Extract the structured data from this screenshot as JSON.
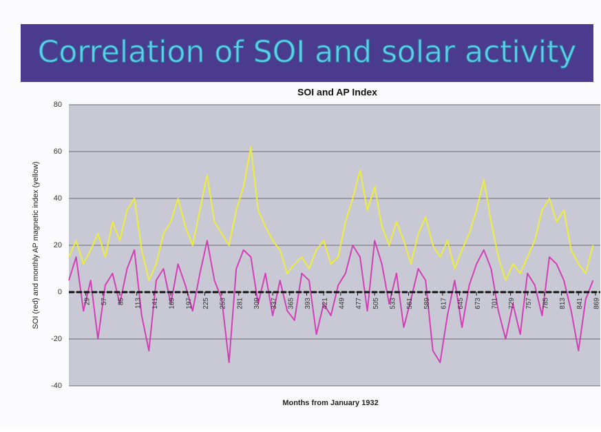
{
  "banner": "Correlation of SOI and solar activity",
  "chart_data": {
    "type": "line",
    "title": "SOI and AP Index",
    "y_label": "SOI (red) and monthly AP magnetic index (yellow)",
    "x_label": "Months from January 1932",
    "xlim": [
      1,
      877
    ],
    "ylim": [
      -40,
      80
    ],
    "yticks": [
      -40,
      -20,
      0,
      20,
      40,
      60,
      80
    ],
    "xticks": [
      29,
      57,
      85,
      113,
      141,
      169,
      197,
      225,
      253,
      281,
      309,
      337,
      365,
      393,
      421,
      449,
      477,
      505,
      533,
      561,
      589,
      617,
      645,
      673,
      701,
      729,
      757,
      785,
      813,
      841,
      869
    ],
    "grid": true,
    "x": [
      1,
      13,
      25,
      37,
      49,
      61,
      73,
      85,
      97,
      109,
      121,
      133,
      145,
      157,
      169,
      181,
      193,
      205,
      217,
      229,
      241,
      253,
      265,
      277,
      289,
      301,
      313,
      325,
      337,
      349,
      361,
      373,
      385,
      397,
      409,
      421,
      433,
      445,
      457,
      469,
      481,
      493,
      505,
      517,
      529,
      541,
      553,
      565,
      577,
      589,
      601,
      613,
      625,
      637,
      649,
      661,
      673,
      685,
      697,
      709,
      721,
      733,
      745,
      757,
      769,
      781,
      793,
      805,
      817,
      829,
      841,
      853,
      865
    ],
    "series": [
      {
        "name": "AP",
        "color": "#eeee3a",
        "values": [
          15,
          22,
          12,
          18,
          25,
          15,
          30,
          22,
          35,
          40,
          18,
          5,
          12,
          25,
          30,
          40,
          28,
          20,
          35,
          50,
          30,
          25,
          20,
          35,
          45,
          62,
          35,
          28,
          22,
          18,
          8,
          12,
          15,
          10,
          18,
          22,
          12,
          15,
          30,
          40,
          52,
          35,
          45,
          28,
          20,
          30,
          22,
          12,
          25,
          32,
          20,
          15,
          22,
          10,
          18,
          25,
          35,
          48,
          30,
          15,
          5,
          12,
          8,
          15,
          22,
          35,
          40,
          30,
          35,
          18,
          12,
          8,
          20
        ]
      },
      {
        "name": "SOI",
        "color": "#d23fb4",
        "values": [
          5,
          15,
          -8,
          5,
          -20,
          3,
          8,
          -5,
          10,
          18,
          -10,
          -25,
          5,
          10,
          -5,
          12,
          3,
          -8,
          8,
          22,
          5,
          -3,
          -30,
          10,
          18,
          15,
          -5,
          8,
          -10,
          5,
          -8,
          -12,
          8,
          5,
          -18,
          -5,
          -10,
          3,
          8,
          20,
          15,
          -8,
          22,
          12,
          -5,
          8,
          -15,
          -3,
          10,
          5,
          -25,
          -30,
          -10,
          5,
          -15,
          3,
          12,
          18,
          10,
          -8,
          -20,
          -5,
          -18,
          8,
          3,
          -10,
          15,
          12,
          5,
          -8,
          -25,
          -3,
          5
        ]
      }
    ]
  }
}
